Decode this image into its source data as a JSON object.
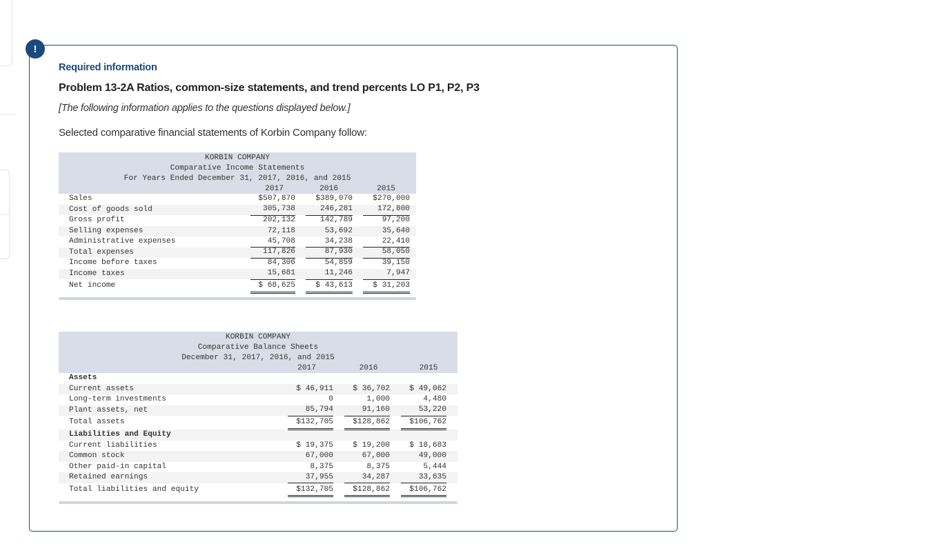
{
  "alert": {
    "icon": "exclamation-icon",
    "glyph": "!"
  },
  "header": {
    "required_label": "Required information",
    "problem_title": "Problem 13-2A Ratios, common-size statements, and trend percents LO P1, P2, P3",
    "note": "[The following information applies to the questions displayed below.]",
    "intro": "Selected comparative financial statements of Korbin Company follow:"
  },
  "income_statement": {
    "company": "KORBIN COMPANY",
    "title": "Comparative Income Statements",
    "period": "For Years Ended December 31, 2017, 2016, and 2015",
    "years": [
      "2017",
      "2016",
      "2015"
    ],
    "rows": [
      {
        "label": "Sales",
        "values": [
          "$507,870",
          "$389,070",
          "$270,000"
        ],
        "underline": ""
      },
      {
        "label": "Cost of goods sold",
        "values": [
          "305,738",
          "246,281",
          "172,800"
        ],
        "underline": "single"
      },
      {
        "label": "Gross profit",
        "values": [
          "202,132",
          "142,789",
          "97,200"
        ],
        "underline": ""
      },
      {
        "label": "Selling expenses",
        "values": [
          "72,118",
          "53,692",
          "35,640"
        ],
        "underline": ""
      },
      {
        "label": "Administrative expenses",
        "values": [
          "45,708",
          "34,238",
          "22,410"
        ],
        "underline": "single"
      },
      {
        "label": "Total expenses",
        "values": [
          "117,826",
          "87,930",
          "58,050"
        ],
        "underline": "single"
      },
      {
        "label": "Income before taxes",
        "values": [
          "84,306",
          "54,859",
          "39,150"
        ],
        "underline": ""
      },
      {
        "label": "Income taxes",
        "values": [
          "15,681",
          "11,246",
          "7,947"
        ],
        "underline": "single"
      },
      {
        "label": "Net income",
        "values": [
          "$ 68,625",
          "$ 43,613",
          "$ 31,203"
        ],
        "underline": "double"
      }
    ]
  },
  "balance_sheet": {
    "company": "KORBIN COMPANY",
    "title": "Comparative Balance Sheets",
    "period": "December 31, 2017, 2016, and 2015",
    "years": [
      "2017",
      "2016",
      "2015"
    ],
    "rows": [
      {
        "label": "Assets",
        "section": true,
        "values": [
          "",
          "",
          ""
        ],
        "underline": ""
      },
      {
        "label": "Current assets",
        "values": [
          "$ 46,911",
          "$ 36,702",
          "$ 49,062"
        ],
        "underline": ""
      },
      {
        "label": "Long-term investments",
        "values": [
          "0",
          "1,000",
          "4,480"
        ],
        "underline": ""
      },
      {
        "label": "Plant assets, net",
        "values": [
          "85,794",
          "91,160",
          "53,220"
        ],
        "underline": "single"
      },
      {
        "label": "Total assets",
        "values": [
          "$132,705",
          "$128,862",
          "$106,762"
        ],
        "underline": "double"
      },
      {
        "label": "Liabilities and Equity",
        "section": true,
        "values": [
          "",
          "",
          ""
        ],
        "underline": ""
      },
      {
        "label": "Current liabilities",
        "values": [
          "$ 19,375",
          "$ 19,200",
          "$ 18,683"
        ],
        "underline": ""
      },
      {
        "label": "Common stock",
        "values": [
          "67,000",
          "67,000",
          "49,000"
        ],
        "underline": ""
      },
      {
        "label": "Other paid-in capital",
        "values": [
          "8,375",
          "8,375",
          "5,444"
        ],
        "underline": ""
      },
      {
        "label": "Retained earnings",
        "values": [
          "37,955",
          "34,287",
          "33,635"
        ],
        "underline": "single"
      },
      {
        "label": "Total liabilities and equity",
        "values": [
          "$132,705",
          "$128,862",
          "$106,762"
        ],
        "underline": "double"
      }
    ]
  },
  "colors": {
    "accent": "#1a4a7c",
    "table_header_bg": "#d9dde7",
    "row_stripe": "#f3f3f3"
  }
}
